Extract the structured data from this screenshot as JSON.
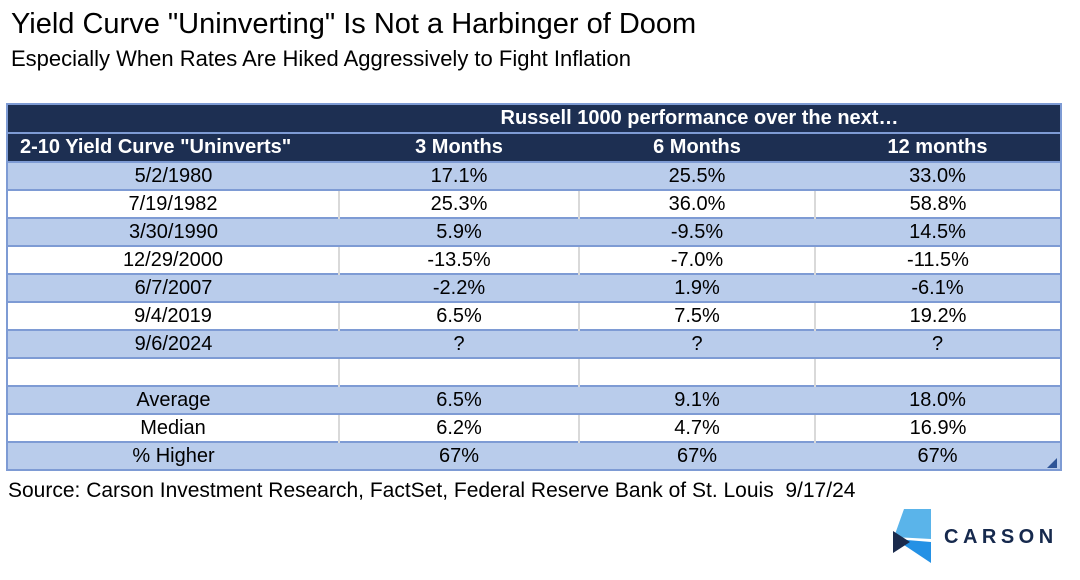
{
  "chart_data": {
    "type": "table",
    "title": "Yield Curve \"Uninverting\" Is Not a Harbinger of Doom",
    "subtitle": "Especially When Rates Are Hiked Aggressively to Fight Inflation",
    "span_header": "Russell 1000 performance over the next…",
    "columns": [
      "2-10 Yield Curve \"Uninverts\"",
      "3 Months",
      "6 Months",
      "12 months"
    ],
    "rows": [
      {
        "label": "5/2/1980",
        "values": [
          "17.1%",
          "25.5%",
          "33.0%"
        ]
      },
      {
        "label": "7/19/1982",
        "values": [
          "25.3%",
          "36.0%",
          "58.8%"
        ]
      },
      {
        "label": "3/30/1990",
        "values": [
          "5.9%",
          "-9.5%",
          "14.5%"
        ]
      },
      {
        "label": "12/29/2000",
        "values": [
          "-13.5%",
          "-7.0%",
          "-11.5%"
        ]
      },
      {
        "label": "6/7/2007",
        "values": [
          "-2.2%",
          "1.9%",
          "-6.1%"
        ]
      },
      {
        "label": "9/4/2019",
        "values": [
          "6.5%",
          "7.5%",
          "19.2%"
        ]
      },
      {
        "label": "9/6/2024",
        "values": [
          "?",
          "?",
          "?"
        ]
      },
      {
        "label": "",
        "values": [
          "",
          "",
          ""
        ]
      },
      {
        "label": "Average",
        "values": [
          "6.5%",
          "9.1%",
          "18.0%"
        ]
      },
      {
        "label": "Median",
        "values": [
          "6.2%",
          "4.7%",
          "16.9%"
        ]
      },
      {
        "label": "% Higher",
        "values": [
          "67%",
          "67%",
          "67%"
        ]
      }
    ],
    "layout": {
      "row_striping": "alternating blue/white starting blue",
      "grid": "horizontal blue rules between all rows; light gray vertical rules on white rows only"
    }
  },
  "source": {
    "text": "Source: Carson Investment Research, FactSet, Federal Reserve Bank of St. Louis  9/17/24"
  },
  "logo": {
    "text": "CARSON"
  },
  "colors": {
    "header_navy": "#1d2f52",
    "row_blue": "#b9cceb",
    "row_white": "#ffffff",
    "border_blue": "#7e9bd4",
    "border_gray": "#d9d9d9",
    "corner_handle_blue": "#2f5597",
    "logo_light_blue": "#5ab4ea",
    "logo_blue": "#2491e5",
    "logo_navy": "#1b2b4d",
    "logo_text_navy": "#16294d"
  }
}
